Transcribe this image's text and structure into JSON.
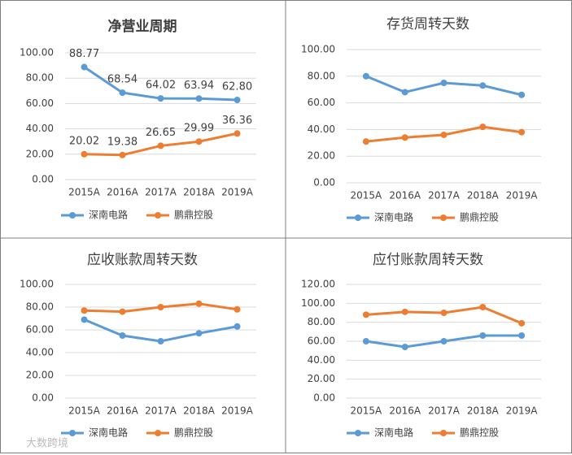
{
  "chart_data": [
    {
      "type": "line",
      "title": "净营业周期",
      "categories": [
        "2015A",
        "2016A",
        "2017A",
        "2018A",
        "2019A"
      ],
      "series": [
        {
          "name": "深南电路",
          "color": "#5b9bd5",
          "values": [
            88.77,
            68.54,
            64.02,
            63.94,
            62.8
          ],
          "value_labels": [
            "88.77",
            "68.54",
            "64.02",
            "63.94",
            "62.80"
          ]
        },
        {
          "name": "鹏鼎控股",
          "color": "#ed7d31",
          "values": [
            20.02,
            19.38,
            26.65,
            29.99,
            36.36
          ],
          "value_labels": [
            "20.02",
            "19.38",
            "26.65",
            "29.99",
            "36.36"
          ]
        }
      ],
      "ylim": [
        0,
        100
      ],
      "yticks": [
        {
          "value": 0,
          "label": "0.00"
        },
        {
          "value": 20,
          "label": "20.00"
        },
        {
          "value": 40,
          "label": "40.00"
        },
        {
          "value": 60,
          "label": "60.00"
        },
        {
          "value": 80,
          "label": "80.00"
        },
        {
          "value": 100,
          "label": "100.00"
        }
      ],
      "grid": true
    },
    {
      "type": "line",
      "title": "存货周转天数",
      "categories": [
        "2015A",
        "2016A",
        "2017A",
        "2018A",
        "2019A"
      ],
      "series": [
        {
          "name": "深南电路",
          "color": "#5b9bd5",
          "values": [
            80,
            68,
            75,
            73,
            66
          ]
        },
        {
          "name": "鹏鼎控股",
          "color": "#ed7d31",
          "values": [
            31,
            34,
            36,
            42,
            38
          ]
        }
      ],
      "ylim": [
        0,
        100
      ],
      "yticks": [
        {
          "value": 0,
          "label": "0.00"
        },
        {
          "value": 20,
          "label": "20.00"
        },
        {
          "value": 40,
          "label": "40.00"
        },
        {
          "value": 60,
          "label": "60.00"
        },
        {
          "value": 80,
          "label": "80.00"
        },
        {
          "value": 100,
          "label": "100.00"
        }
      ],
      "grid": true
    },
    {
      "type": "line",
      "title": "应收账款周转天数",
      "categories": [
        "2015A",
        "2016A",
        "2017A",
        "2018A",
        "2019A"
      ],
      "series": [
        {
          "name": "深南电路",
          "color": "#5b9bd5",
          "values": [
            69,
            55,
            50,
            57,
            63
          ]
        },
        {
          "name": "鹏鼎控股",
          "color": "#ed7d31",
          "values": [
            77,
            76,
            80,
            83,
            78
          ]
        }
      ],
      "ylim": [
        0,
        100
      ],
      "yticks": [
        {
          "value": 0,
          "label": "0.00"
        },
        {
          "value": 20,
          "label": "20.00"
        },
        {
          "value": 40,
          "label": "40.00"
        },
        {
          "value": 60,
          "label": "60.00"
        },
        {
          "value": 80,
          "label": "80.00"
        },
        {
          "value": 100,
          "label": "100.00"
        }
      ],
      "grid": true
    },
    {
      "type": "line",
      "title": "应付账款周转天数",
      "categories": [
        "2015A",
        "2016A",
        "2017A",
        "2018A",
        "2019A"
      ],
      "series": [
        {
          "name": "深南电路",
          "color": "#5b9bd5",
          "values": [
            60,
            54,
            60,
            66,
            66
          ]
        },
        {
          "name": "鹏鼎控股",
          "color": "#ed7d31",
          "values": [
            88,
            91,
            90,
            96,
            79
          ]
        }
      ],
      "ylim": [
        0,
        120
      ],
      "yticks": [
        {
          "value": 0,
          "label": "0.00"
        },
        {
          "value": 20,
          "label": "20.00"
        },
        {
          "value": 40,
          "label": "40.00"
        },
        {
          "value": 60,
          "label": "60.00"
        },
        {
          "value": 80,
          "label": "80.00"
        },
        {
          "value": 100,
          "label": "100.00"
        },
        {
          "value": 120,
          "label": "120.00"
        }
      ],
      "grid": true
    }
  ],
  "watermark": "大数跨境"
}
